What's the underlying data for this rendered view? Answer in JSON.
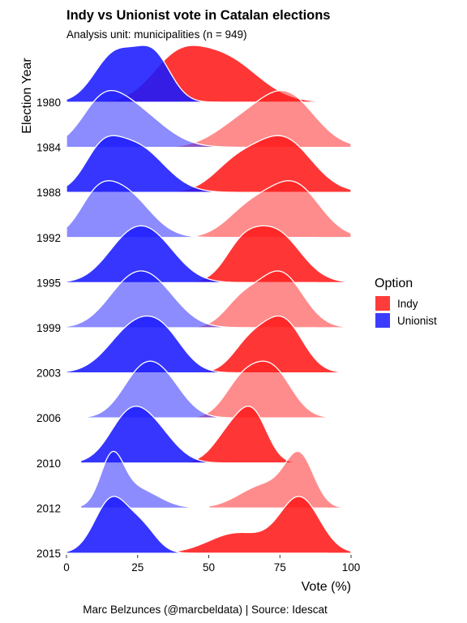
{
  "chart_data": {
    "type": "ridgeline",
    "title": "Indy vs Unionist vote in Catalan elections",
    "subtitle": "Analysis unit: municipalities (n = 949)",
    "xlabel": "Vote (%)",
    "ylabel": "Election Year",
    "caption": "Marc Belzunces (@marcbeldata) | Source: Idescat",
    "xlim": [
      0,
      100
    ],
    "x_ticks": [
      0,
      25,
      50,
      75,
      100
    ],
    "legend": {
      "title": "Option",
      "position": "right",
      "items": [
        "Indy",
        "Unionist"
      ]
    },
    "colors": {
      "Indy": "#ff1a1a",
      "Unionist": "#1a1aff"
    },
    "years": [
      "1980",
      "1984",
      "1988",
      "1992",
      "1995",
      "1999",
      "2003",
      "2006",
      "2010",
      "2012",
      "2015"
    ],
    "series": [
      {
        "name": "Indy",
        "ridges": [
          {
            "year": "1980",
            "peaks": [
              [
                38,
                9,
                0.75
              ],
              [
                55,
                12,
                0.95
              ]
            ],
            "range": [
              10,
              92
            ]
          },
          {
            "year": "1984",
            "peaks": [
              [
                60,
                9,
                0.35
              ],
              [
                77,
                10,
                1.0
              ]
            ],
            "range": [
              25,
              100
            ]
          },
          {
            "year": "1988",
            "peaks": [
              [
                59,
                8,
                0.45
              ],
              [
                76,
                10,
                1.0
              ]
            ],
            "range": [
              28,
              100
            ]
          },
          {
            "year": "1992",
            "peaks": [
              [
                64,
                8,
                0.5
              ],
              [
                80,
                9,
                1.0
              ]
            ],
            "range": [
              35,
              100
            ]
          },
          {
            "year": "1995",
            "peaks": [
              [
                61,
                6,
                0.45
              ],
              [
                73,
                9,
                0.95
              ]
            ],
            "range": [
              40,
              100
            ]
          },
          {
            "year": "1999",
            "peaks": [
              [
                61,
                6,
                0.4
              ],
              [
                75,
                8,
                1.0
              ]
            ],
            "range": [
              42,
              100
            ]
          },
          {
            "year": "2003",
            "peaks": [
              [
                64,
                6,
                0.5
              ],
              [
                76,
                7,
                1.0
              ]
            ],
            "range": [
              45,
              100
            ]
          },
          {
            "year": "2006",
            "peaks": [
              [
                61,
                6,
                0.55
              ],
              [
                72,
                7,
                0.9
              ]
            ],
            "range": [
              45,
              100
            ]
          },
          {
            "year": "2010",
            "peaks": [
              [
                58,
                6,
                0.7
              ],
              [
                66,
                5,
                0.9
              ]
            ],
            "range": [
              40,
              92
            ]
          },
          {
            "year": "2012",
            "peaks": [
              [
                70,
                9,
                0.5
              ],
              [
                82,
                5,
                1.0
              ]
            ],
            "range": [
              50,
              100
            ]
          },
          {
            "year": "2015",
            "peaks": [
              [
                60,
                10,
                0.35
              ],
              [
                82,
                7,
                0.95
              ]
            ],
            "range": [
              20,
              100
            ]
          }
        ]
      },
      {
        "name": "Unionist",
        "ridges": [
          {
            "year": "1980",
            "peaks": [
              [
                16,
                7,
                0.88
              ],
              [
                31,
                6,
                1.0
              ],
              [
                22,
                8,
                0.5
              ]
            ],
            "range": [
              0,
              92
            ]
          },
          {
            "year": "1984",
            "peaks": [
              [
                12,
                7,
                0.65
              ],
              [
                22,
                11,
                1.0
              ]
            ],
            "range": [
              0,
              92
            ]
          },
          {
            "year": "1988",
            "peaks": [
              [
                12,
                6,
                0.6
              ],
              [
                24,
                10,
                1.0
              ]
            ],
            "range": [
              0,
              88
            ]
          },
          {
            "year": "1992",
            "peaks": [
              [
                10,
                6,
                0.55
              ],
              [
                20,
                9,
                1.0
              ]
            ],
            "range": [
              0,
              88
            ]
          },
          {
            "year": "1995",
            "peaks": [
              [
                20,
                8,
                0.6
              ],
              [
                30,
                9,
                1.0
              ]
            ],
            "range": [
              0,
              88
            ]
          },
          {
            "year": "1999",
            "peaks": [
              [
                20,
                8,
                0.6
              ],
              [
                30,
                9,
                1.0
              ]
            ],
            "range": [
              0,
              88
            ]
          },
          {
            "year": "2003",
            "peaks": [
              [
                24,
                9,
                1.0
              ],
              [
                35,
                7,
                0.55
              ]
            ],
            "range": [
              0,
              92
            ]
          },
          {
            "year": "2006",
            "peaks": [
              [
                26,
                7,
                1.0
              ],
              [
                35,
                7,
                0.75
              ]
            ],
            "range": [
              5,
              92
            ]
          },
          {
            "year": "2010",
            "peaks": [
              [
                22,
                7,
                1.0
              ],
              [
                32,
                7,
                0.55
              ]
            ],
            "range": [
              5,
              92
            ]
          },
          {
            "year": "2012",
            "peaks": [
              [
                16,
                4,
                1.0
              ],
              [
                24,
                8,
                0.45
              ]
            ],
            "range": [
              5,
              92
            ]
          },
          {
            "year": "2015",
            "peaks": [
              [
                16,
                6,
                1.0
              ],
              [
                27,
                5,
                0.4
              ]
            ],
            "range": [
              0,
              92
            ]
          }
        ]
      }
    ]
  }
}
